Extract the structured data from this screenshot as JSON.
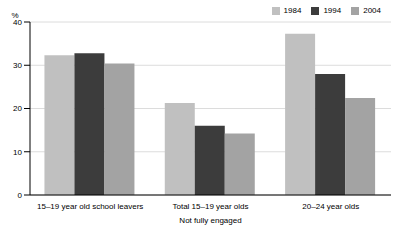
{
  "chart_data": {
    "type": "bar",
    "y_label": "%",
    "x_label": "Not fully engaged",
    "categories": [
      "15–19 year old school leavers",
      "Total 15–19 year olds",
      "20–24 year olds"
    ],
    "series": [
      {
        "name": "1984",
        "color": "#c0c0c0",
        "values": [
          32.3,
          21.3,
          37.3
        ]
      },
      {
        "name": "1994",
        "color": "#3c3c3c",
        "values": [
          32.8,
          16.0,
          28.0
        ]
      },
      {
        "name": "2004",
        "color": "#a3a3a3",
        "values": [
          30.4,
          14.2,
          22.4
        ]
      }
    ],
    "ylim": [
      0,
      40
    ],
    "yticks": [
      0,
      10,
      20,
      30,
      40
    ],
    "grid": true,
    "legend": "top-right"
  }
}
